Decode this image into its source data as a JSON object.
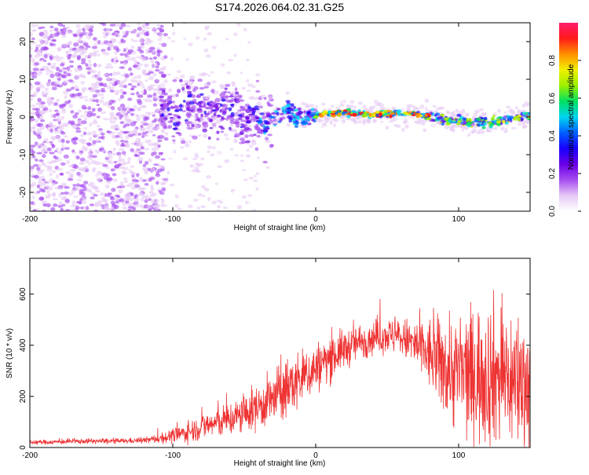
{
  "title": "S174.2026.064.02.31.G25",
  "chart_data": [
    {
      "type": "heatmap",
      "xlabel": "Height of straight line (km)",
      "ylabel": "Frequency (Hz)",
      "xlim": [
        -200,
        150
      ],
      "ylim": [
        -25,
        25
      ],
      "xticks": [
        -200,
        -100,
        0,
        100
      ],
      "yticks": [
        -20,
        -10,
        0,
        10,
        20
      ],
      "colorbar": {
        "label": "Normalized spectral amplitude",
        "range": [
          0,
          1
        ],
        "ticks": [
          "0.0",
          "0.2",
          "0.4",
          "0.6",
          "0.8"
        ],
        "stops": [
          "#ffffff",
          "#e6c8f5",
          "#a64cf0",
          "#6a00e6",
          "#1800ff",
          "#0060ff",
          "#00d6f0",
          "#00e060",
          "#9cf000",
          "#f0f000",
          "#ff9000",
          "#ff1a1a",
          "#ff1a6e"
        ]
      },
      "ridge": [
        [
          -110,
          1.5
        ],
        [
          -100,
          2.0
        ],
        [
          -90,
          2.5
        ],
        [
          -80,
          2.0
        ],
        [
          -70,
          1.0
        ],
        [
          -60,
          1.5
        ],
        [
          -50,
          0.5
        ],
        [
          -40,
          -1.0
        ],
        [
          -35,
          -3.0
        ],
        [
          -30,
          0.0
        ],
        [
          -25,
          1.0
        ],
        [
          -20,
          2.5
        ],
        [
          -15,
          0.5
        ],
        [
          -10,
          0.0
        ],
        [
          0,
          0.5
        ],
        [
          10,
          1.0
        ],
        [
          20,
          1.0
        ],
        [
          30,
          1.0
        ],
        [
          40,
          0.5
        ],
        [
          50,
          1.0
        ],
        [
          60,
          1.0
        ],
        [
          70,
          1.0
        ],
        [
          80,
          0.0
        ],
        [
          90,
          -0.5
        ],
        [
          100,
          -1.0
        ],
        [
          110,
          -1.5
        ],
        [
          120,
          -1.5
        ],
        [
          130,
          -1.0
        ],
        [
          140,
          0.0
        ],
        [
          150,
          0.5
        ]
      ]
    },
    {
      "type": "line",
      "xlabel": "Height of straight line (km)",
      "ylabel": "SNR (10 * v/v)",
      "xlim": [
        -200,
        150
      ],
      "ylim": [
        0,
        740
      ],
      "xticks": [
        -200,
        -100,
        0,
        100
      ],
      "yticks": [
        0,
        200,
        400,
        600
      ],
      "color": "#ee3333",
      "envelope": [
        [
          -200,
          20
        ],
        [
          -180,
          22
        ],
        [
          -160,
          25
        ],
        [
          -140,
          25
        ],
        [
          -120,
          28
        ],
        [
          -110,
          35
        ],
        [
          -100,
          45
        ],
        [
          -90,
          60
        ],
        [
          -80,
          80
        ],
        [
          -70,
          95
        ],
        [
          -60,
          110
        ],
        [
          -50,
          130
        ],
        [
          -40,
          160
        ],
        [
          -30,
          190
        ],
        [
          -20,
          230
        ],
        [
          -10,
          270
        ],
        [
          0,
          310
        ],
        [
          10,
          350
        ],
        [
          20,
          385
        ],
        [
          30,
          410
        ],
        [
          40,
          430
        ],
        [
          50,
          440
        ],
        [
          60,
          430
        ],
        [
          70,
          400
        ],
        [
          80,
          360
        ],
        [
          90,
          320
        ],
        [
          100,
          290
        ],
        [
          110,
          280
        ],
        [
          120,
          300
        ],
        [
          130,
          280
        ],
        [
          140,
          260
        ],
        [
          150,
          250
        ]
      ],
      "spread": [
        [
          -200,
          8
        ],
        [
          -120,
          10
        ],
        [
          -100,
          25
        ],
        [
          -80,
          45
        ],
        [
          -60,
          60
        ],
        [
          -40,
          80
        ],
        [
          -20,
          110
        ],
        [
          0,
          90
        ],
        [
          20,
          70
        ],
        [
          40,
          60
        ],
        [
          60,
          65
        ],
        [
          80,
          130
        ],
        [
          100,
          220
        ],
        [
          120,
          260
        ],
        [
          150,
          240
        ]
      ]
    }
  ]
}
